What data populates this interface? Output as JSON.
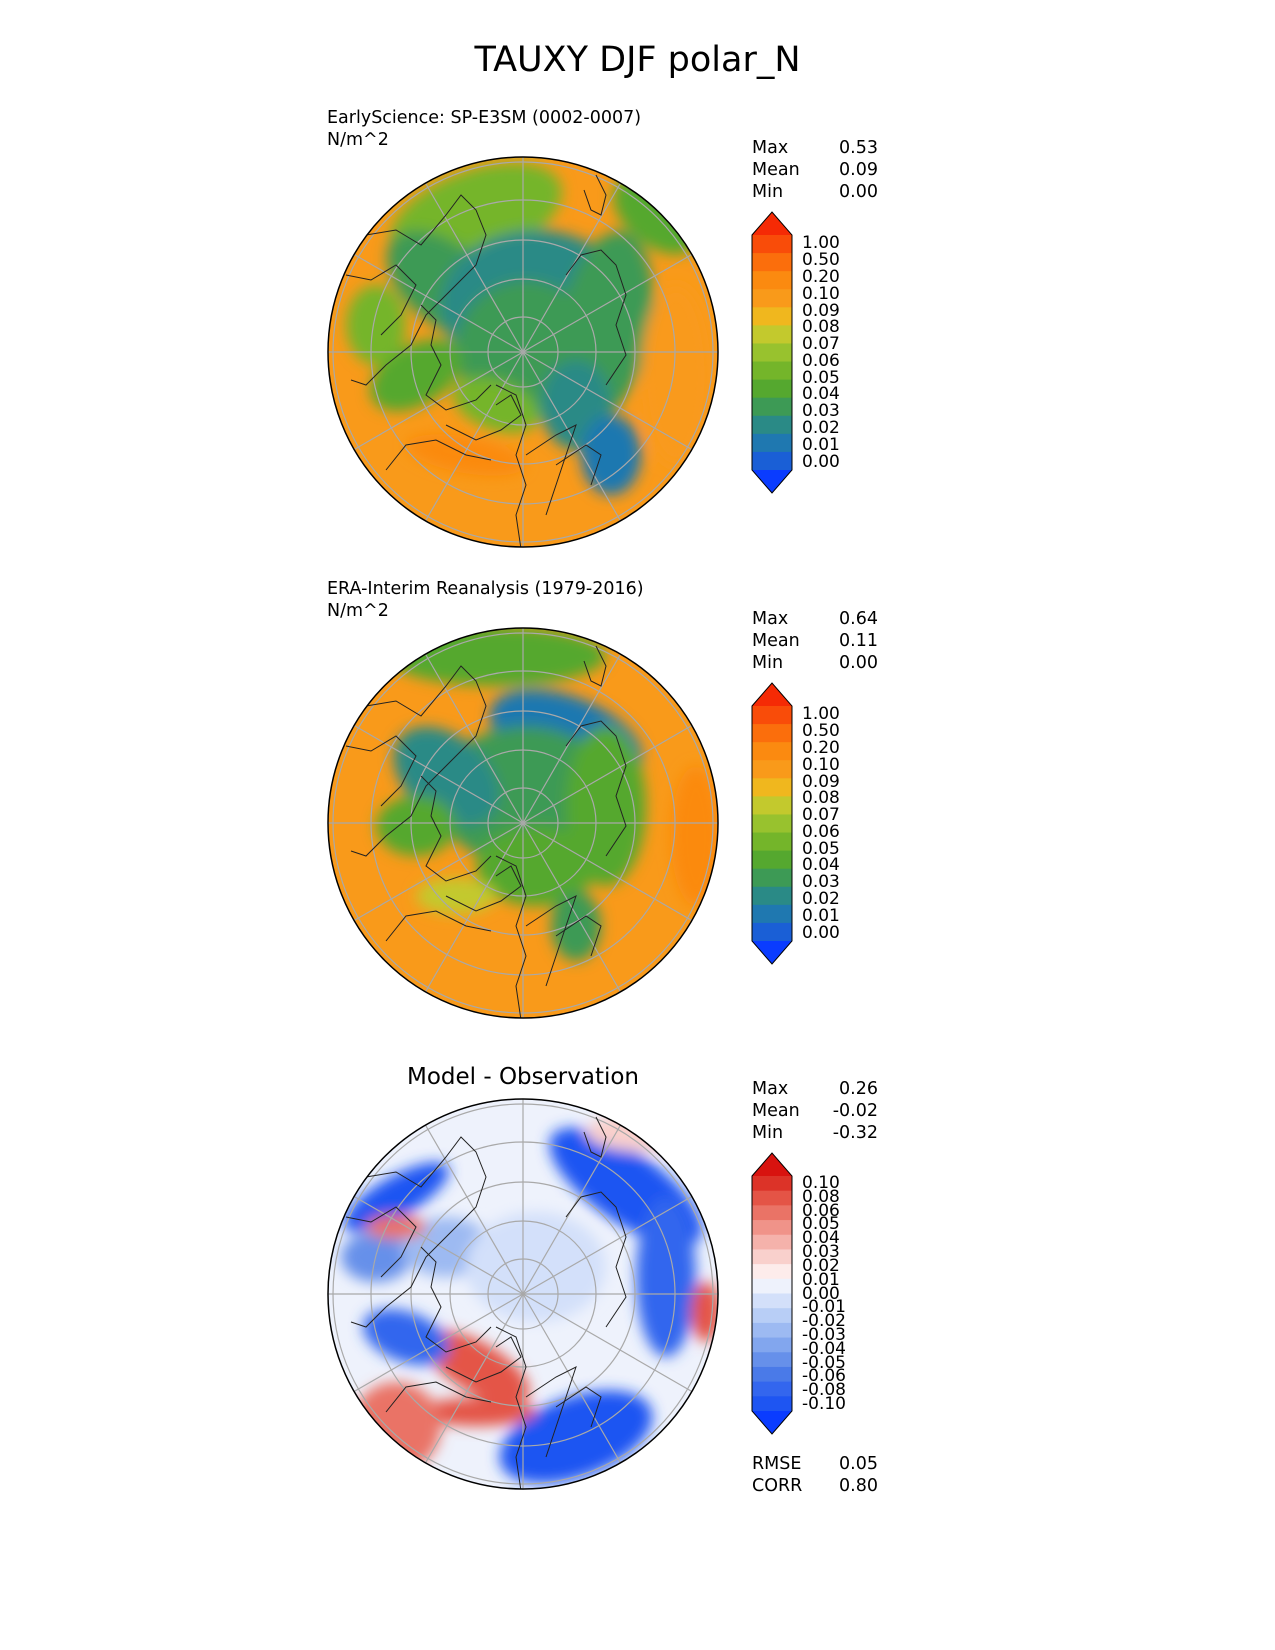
{
  "title": "TAUXY DJF polar_N",
  "panels": [
    {
      "title_line1": "EarlyScience: SP-E3SM (0002-0007)",
      "title_line2": "N/m^2",
      "stats": [
        {
          "label": "Max",
          "value": "0.53"
        },
        {
          "label": "Mean",
          "value": "0.09"
        },
        {
          "label": "Min",
          "value": "0.00"
        }
      ],
      "colorbar_ticks": [
        "1.00",
        "0.50",
        "0.20",
        "0.10",
        "0.09",
        "0.08",
        "0.07",
        "0.06",
        "0.05",
        "0.04",
        "0.03",
        "0.02",
        "0.01",
        "0.00"
      ]
    },
    {
      "title_line1": "ERA-Interim Reanalysis (1979-2016)",
      "title_line2": "N/m^2",
      "stats": [
        {
          "label": "Max",
          "value": "0.64"
        },
        {
          "label": "Mean",
          "value": "0.11"
        },
        {
          "label": "Min",
          "value": "0.00"
        }
      ],
      "colorbar_ticks": [
        "1.00",
        "0.50",
        "0.20",
        "0.10",
        "0.09",
        "0.08",
        "0.07",
        "0.06",
        "0.05",
        "0.04",
        "0.03",
        "0.02",
        "0.01",
        "0.00"
      ]
    },
    {
      "title": "Model - Observation",
      "stats": [
        {
          "label": "Max",
          "value": "0.26"
        },
        {
          "label": "Mean",
          "value": "-0.02"
        },
        {
          "label": "Min",
          "value": "-0.32"
        }
      ],
      "colorbar_ticks": [
        "0.10",
        "0.08",
        "0.06",
        "0.05",
        "0.04",
        "0.03",
        "0.02",
        "0.01",
        "0.00",
        "-0.01",
        "-0.02",
        "-0.03",
        "-0.04",
        "-0.05",
        "-0.06",
        "-0.08",
        "-0.10"
      ],
      "metrics": [
        {
          "label": "RMSE",
          "value": "0.05"
        },
        {
          "label": "CORR",
          "value": "0.80"
        }
      ]
    }
  ],
  "colors": {
    "field_scale": [
      "#0a3cff",
      "#1a5fd6",
      "#1f78b0",
      "#2a8a86",
      "#3d9a55",
      "#55a82f",
      "#74b52a",
      "#98c22e",
      "#c3c92d",
      "#f0b71e",
      "#f99a1a",
      "#fb8a10",
      "#fb6e0c",
      "#f94c09",
      "#f52a05"
    ],
    "diff_scale": [
      "#0a3cff",
      "#1e55f2",
      "#3366ee",
      "#4a7ae8",
      "#6690ea",
      "#82a6ee",
      "#9dbaf2",
      "#b8cef6",
      "#d3e0fa",
      "#eef2fc",
      "#fdeceb",
      "#f9d0cc",
      "#f5b2ab",
      "#f09389",
      "#ea7366",
      "#e45446",
      "#dc3328",
      "#d8130f"
    ],
    "land_outline": "#222222",
    "grid": "#a9a9a9"
  }
}
